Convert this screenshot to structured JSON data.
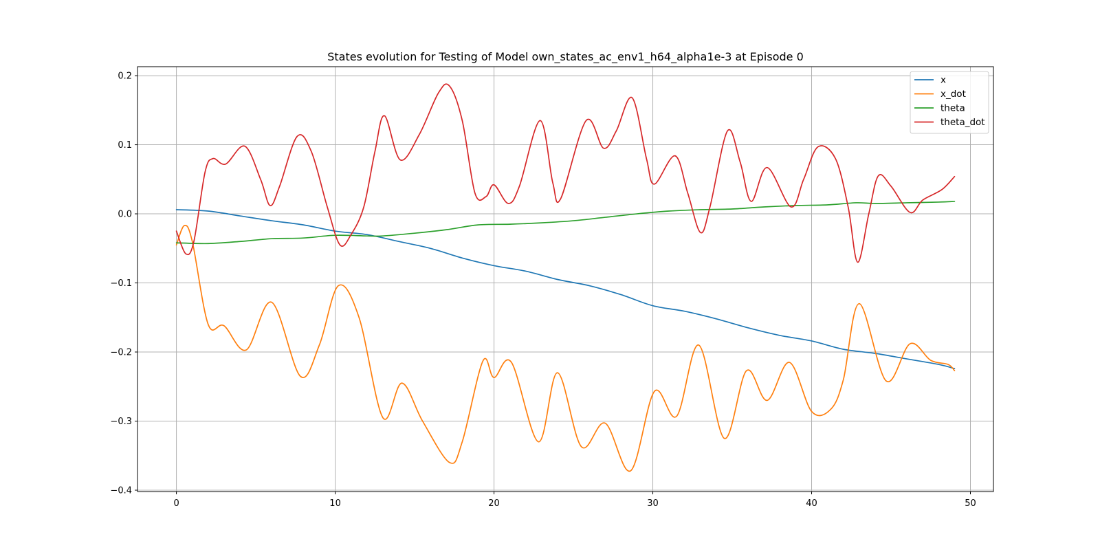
{
  "chart_data": {
    "type": "line",
    "title": "States evolution for Testing of Model own_states_ac_env1_h64_alpha1e-3 at Episode 0",
    "xlabel": "",
    "ylabel": "",
    "xlim": [
      -2.45,
      51.45
    ],
    "ylim": [
      -0.402,
      0.213
    ],
    "xticks": [
      0,
      10,
      20,
      30,
      40,
      50
    ],
    "xtick_labels": [
      "0",
      "10",
      "20",
      "30",
      "40",
      "50"
    ],
    "yticks": [
      0.2,
      0.1,
      0.0,
      -0.1,
      -0.2,
      -0.3,
      -0.4
    ],
    "ytick_labels": [
      "0.2",
      "0.1",
      "0.0",
      "−0.1",
      "−0.2",
      "−0.3",
      "−0.4"
    ],
    "grid": true,
    "legend_position": "top-right",
    "series": [
      {
        "name": "x",
        "color": "#1f77b4",
        "points": [
          [
            0,
            0.006
          ],
          [
            2,
            0.004
          ],
          [
            4,
            -0.003
          ],
          [
            6,
            -0.01
          ],
          [
            8,
            -0.016
          ],
          [
            10,
            -0.025
          ],
          [
            12,
            -0.03
          ],
          [
            14,
            -0.04
          ],
          [
            16,
            -0.05
          ],
          [
            18,
            -0.064
          ],
          [
            20,
            -0.075
          ],
          [
            22,
            -0.083
          ],
          [
            24,
            -0.095
          ],
          [
            26,
            -0.104
          ],
          [
            28,
            -0.117
          ],
          [
            30,
            -0.133
          ],
          [
            32,
            -0.141
          ],
          [
            34,
            -0.152
          ],
          [
            36,
            -0.165
          ],
          [
            38,
            -0.176
          ],
          [
            40,
            -0.184
          ],
          [
            42,
            -0.196
          ],
          [
            44,
            -0.202
          ],
          [
            46,
            -0.21
          ],
          [
            48,
            -0.218
          ],
          [
            49,
            -0.224
          ]
        ]
      },
      {
        "name": "x_dot",
        "color": "#ff7f0e",
        "points": [
          [
            0,
            -0.045
          ],
          [
            0.5,
            -0.017
          ],
          [
            1,
            -0.04
          ],
          [
            2,
            -0.16
          ],
          [
            3,
            -0.162
          ],
          [
            4.4,
            -0.197
          ],
          [
            6,
            -0.128
          ],
          [
            7.8,
            -0.235
          ],
          [
            9,
            -0.19
          ],
          [
            10.2,
            -0.104
          ],
          [
            11.5,
            -0.15
          ],
          [
            13,
            -0.295
          ],
          [
            14.2,
            -0.245
          ],
          [
            15.5,
            -0.3
          ],
          [
            17.2,
            -0.36
          ],
          [
            18,
            -0.33
          ],
          [
            19.3,
            -0.213
          ],
          [
            20,
            -0.237
          ],
          [
            21.1,
            -0.215
          ],
          [
            22.8,
            -0.33
          ],
          [
            24,
            -0.23
          ],
          [
            25.5,
            -0.337
          ],
          [
            27,
            -0.303
          ],
          [
            28.6,
            -0.372
          ],
          [
            30.1,
            -0.257
          ],
          [
            31.5,
            -0.293
          ],
          [
            32.9,
            -0.19
          ],
          [
            34.5,
            -0.325
          ],
          [
            35.9,
            -0.227
          ],
          [
            37.2,
            -0.27
          ],
          [
            38.6,
            -0.215
          ],
          [
            40,
            -0.286
          ],
          [
            41.2,
            -0.283
          ],
          [
            42,
            -0.24
          ],
          [
            43,
            -0.13
          ],
          [
            44.7,
            -0.242
          ],
          [
            46.2,
            -0.188
          ],
          [
            47.5,
            -0.212
          ],
          [
            48.6,
            -0.218
          ],
          [
            49,
            -0.227
          ]
        ]
      },
      {
        "name": "theta",
        "color": "#2ca02c",
        "points": [
          [
            0,
            -0.042
          ],
          [
            2,
            -0.043
          ],
          [
            4,
            -0.04
          ],
          [
            6,
            -0.036
          ],
          [
            8,
            -0.035
          ],
          [
            10,
            -0.031
          ],
          [
            12,
            -0.032
          ],
          [
            13,
            -0.032
          ],
          [
            15,
            -0.028
          ],
          [
            17,
            -0.023
          ],
          [
            19,
            -0.016
          ],
          [
            21,
            -0.015
          ],
          [
            23,
            -0.013
          ],
          [
            25,
            -0.01
          ],
          [
            27,
            -0.005
          ],
          [
            29,
            0.0
          ],
          [
            31,
            0.004
          ],
          [
            33,
            0.006
          ],
          [
            35,
            0.007
          ],
          [
            37,
            0.01
          ],
          [
            39,
            0.012
          ],
          [
            41,
            0.013
          ],
          [
            42.8,
            0.016
          ],
          [
            44,
            0.015
          ],
          [
            46,
            0.016
          ],
          [
            48,
            0.017
          ],
          [
            49,
            0.018
          ]
        ]
      },
      {
        "name": "theta_dot",
        "color": "#d62728",
        "points": [
          [
            0,
            -0.025
          ],
          [
            0.6,
            -0.058
          ],
          [
            1.1,
            -0.04
          ],
          [
            1.8,
            0.06
          ],
          [
            2.3,
            0.08
          ],
          [
            3.1,
            0.072
          ],
          [
            4.3,
            0.098
          ],
          [
            5.3,
            0.05
          ],
          [
            5.9,
            0.012
          ],
          [
            6.5,
            0.04
          ],
          [
            7.6,
            0.112
          ],
          [
            8.5,
            0.09
          ],
          [
            9.5,
            0.01
          ],
          [
            10.3,
            -0.045
          ],
          [
            11,
            -0.03
          ],
          [
            11.8,
            0.01
          ],
          [
            12.5,
            0.09
          ],
          [
            13.1,
            0.142
          ],
          [
            14.1,
            0.078
          ],
          [
            15.3,
            0.115
          ],
          [
            16.5,
            0.175
          ],
          [
            17.2,
            0.185
          ],
          [
            18,
            0.135
          ],
          [
            18.8,
            0.03
          ],
          [
            19.5,
            0.025
          ],
          [
            20,
            0.042
          ],
          [
            20.9,
            0.015
          ],
          [
            21.6,
            0.04
          ],
          [
            22.9,
            0.135
          ],
          [
            23.7,
            0.045
          ],
          [
            24.2,
            0.022
          ],
          [
            25.8,
            0.135
          ],
          [
            26.9,
            0.095
          ],
          [
            27.7,
            0.12
          ],
          [
            28.7,
            0.168
          ],
          [
            29.6,
            0.08
          ],
          [
            30.1,
            0.043
          ],
          [
            31.4,
            0.084
          ],
          [
            32.2,
            0.03
          ],
          [
            33,
            -0.027
          ],
          [
            33.6,
            0.01
          ],
          [
            34.7,
            0.12
          ],
          [
            35.5,
            0.075
          ],
          [
            36.2,
            0.018
          ],
          [
            37.2,
            0.067
          ],
          [
            38.7,
            0.01
          ],
          [
            39.5,
            0.05
          ],
          [
            40.4,
            0.097
          ],
          [
            41.5,
            0.08
          ],
          [
            42.3,
            0.01
          ],
          [
            42.9,
            -0.07
          ],
          [
            43.6,
            0.0
          ],
          [
            44.2,
            0.055
          ],
          [
            45,
            0.04
          ],
          [
            46.2,
            0.002
          ],
          [
            47,
            0.02
          ],
          [
            48.2,
            0.035
          ],
          [
            49,
            0.054
          ]
        ]
      }
    ]
  }
}
